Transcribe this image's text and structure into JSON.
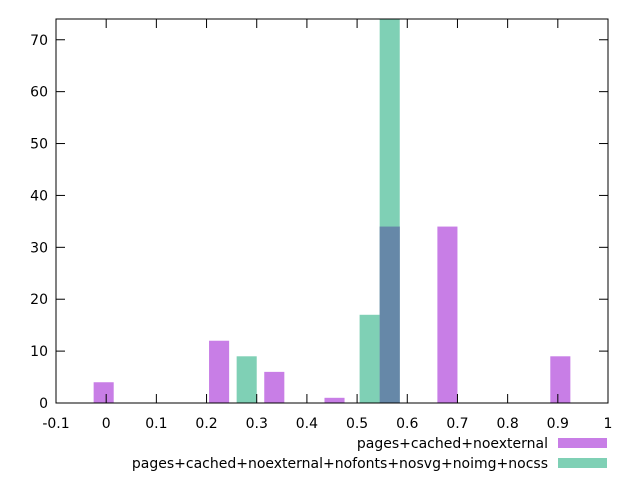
{
  "chart_data": {
    "type": "bar",
    "title": "",
    "xlabel": "",
    "ylabel": "",
    "xlim": [
      -0.1,
      1
    ],
    "ylim": [
      0,
      74
    ],
    "xticks": [
      -0.1,
      0,
      0.1,
      0.2,
      0.3,
      0.4,
      0.5,
      0.6,
      0.7,
      0.8,
      0.9,
      1
    ],
    "xtick_labels": [
      "-0.1",
      "0",
      "0.1",
      "0.2",
      "0.3",
      "0.4",
      "0.5",
      "0.6",
      "0.7",
      "0.8",
      "0.9",
      "1"
    ],
    "yticks": [
      0,
      10,
      20,
      30,
      40,
      50,
      60,
      70
    ],
    "ytick_labels": [
      "0",
      "10",
      "20",
      "30",
      "40",
      "50",
      "60",
      "70"
    ],
    "grid": false,
    "legend_position": "bottom-right",
    "bar_width": 0.04,
    "series": [
      {
        "name": "pages+cached+noexternal",
        "color": "#c87ee6",
        "points": [
          {
            "x": -0.005,
            "y": 4
          },
          {
            "x": 0.225,
            "y": 12
          },
          {
            "x": 0.335,
            "y": 6
          },
          {
            "x": 0.455,
            "y": 1
          },
          {
            "x": 0.565,
            "y": 34
          },
          {
            "x": 0.68,
            "y": 34
          },
          {
            "x": 0.905,
            "y": 9
          }
        ]
      },
      {
        "name": "pages+cached+noexternal+nofonts+nosvg+noimg+nocss",
        "color": "#7fd0b5",
        "points": [
          {
            "x": 0.28,
            "y": 9
          },
          {
            "x": 0.525,
            "y": 17
          },
          {
            "x": 0.565,
            "y": 74
          }
        ]
      }
    ],
    "overlap_color": "#6688a8"
  }
}
